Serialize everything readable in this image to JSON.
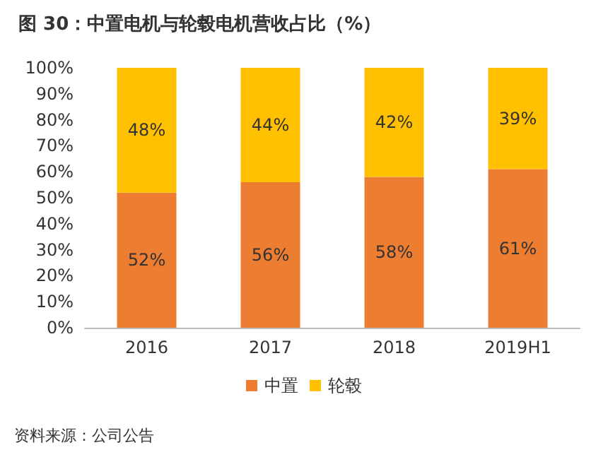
{
  "chart_data": {
    "type": "bar",
    "title": "图 30：中置电机与轮毂电机营收占比（%）",
    "annotations": [
      "资料来源：公司公告"
    ],
    "categories": [
      "2016",
      "2017",
      "2018",
      "2019H1"
    ],
    "stacked": true,
    "series": [
      {
        "name": "中置",
        "color": "#ed7d31",
        "values": [
          52,
          56,
          58,
          61
        ],
        "value_labels": [
          "52%",
          "56%",
          "58%",
          "61%"
        ]
      },
      {
        "name": "轮毂",
        "color": "#ffc000",
        "values": [
          48,
          44,
          42,
          39
        ],
        "value_labels": [
          "48%",
          "44%",
          "42%",
          "39%"
        ]
      }
    ],
    "ylim": [
      0,
      100
    ],
    "yticks": [
      {
        "value": 0,
        "label": "0%"
      },
      {
        "value": 10,
        "label": "10%"
      },
      {
        "value": 20,
        "label": "20%"
      },
      {
        "value": 30,
        "label": "30%"
      },
      {
        "value": 40,
        "label": "40%"
      },
      {
        "value": 50,
        "label": "50%"
      },
      {
        "value": 60,
        "label": "60%"
      },
      {
        "value": 70,
        "label": "70%"
      },
      {
        "value": 80,
        "label": "80%"
      },
      {
        "value": 90,
        "label": "90%"
      },
      {
        "value": 100,
        "label": "100%"
      }
    ],
    "grid": false,
    "legend": "bottom"
  }
}
